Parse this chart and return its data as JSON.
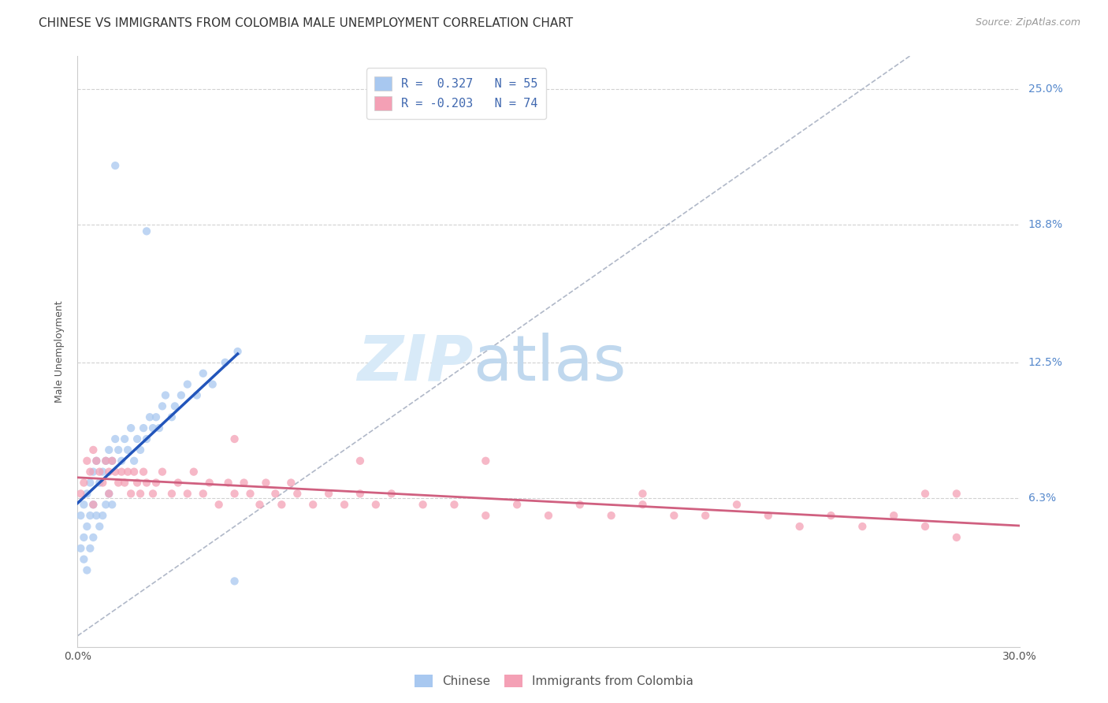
{
  "title": "CHINESE VS IMMIGRANTS FROM COLOMBIA MALE UNEMPLOYMENT CORRELATION CHART",
  "source": "Source: ZipAtlas.com",
  "ylabel": "Male Unemployment",
  "xlim": [
    0.0,
    0.3
  ],
  "ylim": [
    -0.005,
    0.265
  ],
  "ytick_vals": [
    0.063,
    0.125,
    0.188,
    0.25
  ],
  "ytick_labels": [
    "6.3%",
    "12.5%",
    "18.8%",
    "25.0%"
  ],
  "background_color": "#ffffff",
  "watermark_zip": "ZIP",
  "watermark_atlas": "atlas",
  "watermark_color_zip": "#c8dff0",
  "watermark_color_atlas": "#c8dff0",
  "legend_color": "#4169b0",
  "chinese_color": "#a8c8f0",
  "colombia_color": "#f4a0b5",
  "chinese_line_color": "#2255bb",
  "colombia_line_color": "#d06080",
  "grid_color": "#cccccc",
  "title_fontsize": 11,
  "axis_label_fontsize": 9,
  "tick_fontsize": 10,
  "chinese_x": [
    0.001,
    0.001,
    0.002,
    0.002,
    0.002,
    0.003,
    0.003,
    0.003,
    0.004,
    0.004,
    0.004,
    0.005,
    0.005,
    0.005,
    0.006,
    0.006,
    0.007,
    0.007,
    0.008,
    0.008,
    0.009,
    0.009,
    0.01,
    0.01,
    0.011,
    0.011,
    0.012,
    0.013,
    0.014,
    0.015,
    0.016,
    0.017,
    0.018,
    0.019,
    0.02,
    0.021,
    0.022,
    0.023,
    0.024,
    0.025,
    0.026,
    0.027,
    0.028,
    0.03,
    0.031,
    0.033,
    0.035,
    0.038,
    0.04,
    0.043,
    0.047,
    0.051,
    0.012,
    0.022,
    0.05
  ],
  "chinese_y": [
    0.055,
    0.04,
    0.06,
    0.045,
    0.035,
    0.065,
    0.05,
    0.03,
    0.07,
    0.055,
    0.04,
    0.075,
    0.06,
    0.045,
    0.08,
    0.055,
    0.07,
    0.05,
    0.075,
    0.055,
    0.08,
    0.06,
    0.085,
    0.065,
    0.08,
    0.06,
    0.09,
    0.085,
    0.08,
    0.09,
    0.085,
    0.095,
    0.08,
    0.09,
    0.085,
    0.095,
    0.09,
    0.1,
    0.095,
    0.1,
    0.095,
    0.105,
    0.11,
    0.1,
    0.105,
    0.11,
    0.115,
    0.11,
    0.12,
    0.115,
    0.125,
    0.13,
    0.215,
    0.185,
    0.025
  ],
  "colombia_x": [
    0.001,
    0.002,
    0.003,
    0.004,
    0.005,
    0.005,
    0.006,
    0.007,
    0.008,
    0.009,
    0.01,
    0.01,
    0.011,
    0.012,
    0.013,
    0.014,
    0.015,
    0.016,
    0.017,
    0.018,
    0.019,
    0.02,
    0.021,
    0.022,
    0.024,
    0.025,
    0.027,
    0.03,
    0.032,
    0.035,
    0.037,
    0.04,
    0.042,
    0.045,
    0.048,
    0.05,
    0.053,
    0.055,
    0.058,
    0.06,
    0.063,
    0.065,
    0.068,
    0.07,
    0.075,
    0.08,
    0.085,
    0.09,
    0.095,
    0.1,
    0.11,
    0.12,
    0.13,
    0.14,
    0.15,
    0.16,
    0.17,
    0.18,
    0.19,
    0.2,
    0.21,
    0.22,
    0.23,
    0.24,
    0.25,
    0.26,
    0.27,
    0.28,
    0.05,
    0.09,
    0.13,
    0.18,
    0.27,
    0.28
  ],
  "colombia_y": [
    0.065,
    0.07,
    0.08,
    0.075,
    0.085,
    0.06,
    0.08,
    0.075,
    0.07,
    0.08,
    0.075,
    0.065,
    0.08,
    0.075,
    0.07,
    0.075,
    0.07,
    0.075,
    0.065,
    0.075,
    0.07,
    0.065,
    0.075,
    0.07,
    0.065,
    0.07,
    0.075,
    0.065,
    0.07,
    0.065,
    0.075,
    0.065,
    0.07,
    0.06,
    0.07,
    0.065,
    0.07,
    0.065,
    0.06,
    0.07,
    0.065,
    0.06,
    0.07,
    0.065,
    0.06,
    0.065,
    0.06,
    0.065,
    0.06,
    0.065,
    0.06,
    0.06,
    0.055,
    0.06,
    0.055,
    0.06,
    0.055,
    0.06,
    0.055,
    0.055,
    0.06,
    0.055,
    0.05,
    0.055,
    0.05,
    0.055,
    0.05,
    0.045,
    0.09,
    0.08,
    0.08,
    0.065,
    0.065,
    0.065
  ]
}
